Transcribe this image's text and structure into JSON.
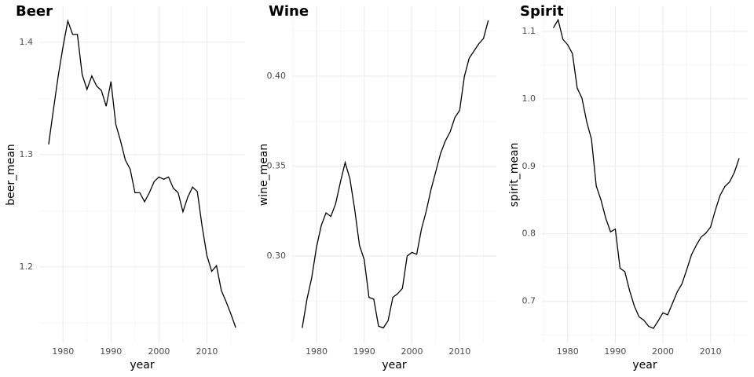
{
  "chart_data": [
    {
      "type": "line",
      "title": "Beer",
      "x_label": "year",
      "y_label": "beer_mean",
      "x": [
        1977,
        1978,
        1979,
        1980,
        1981,
        1982,
        1983,
        1984,
        1985,
        1986,
        1987,
        1988,
        1989,
        1990,
        1991,
        1992,
        1993,
        1994,
        1995,
        1996,
        1997,
        1998,
        1999,
        2000,
        2001,
        2002,
        2003,
        2004,
        2005,
        2006,
        2007,
        2008,
        2009,
        2010,
        2011,
        2012,
        2013,
        2014,
        2015,
        2016
      ],
      "values": [
        1.309,
        1.34,
        1.37,
        1.396,
        1.419,
        1.407,
        1.407,
        1.371,
        1.358,
        1.37,
        1.361,
        1.357,
        1.343,
        1.365,
        1.327,
        1.312,
        1.295,
        1.287,
        1.266,
        1.266,
        1.258,
        1.266,
        1.276,
        1.28,
        1.278,
        1.28,
        1.27,
        1.266,
        1.249,
        1.262,
        1.271,
        1.267,
        1.236,
        1.21,
        1.196,
        1.201,
        1.179,
        1.169,
        1.158,
        1.146
      ],
      "color": "#000000",
      "xlim": [
        1975.05,
        2017.95
      ],
      "xticks": [
        1980,
        1990,
        2000,
        2010
      ],
      "ylim": [
        1.132,
        1.432
      ],
      "yticks": [
        1.2,
        1.3,
        1.4
      ],
      "grid": true
    },
    {
      "type": "line",
      "title": "Wine",
      "x_label": "year",
      "y_label": "wine_mean",
      "x": [
        1977,
        1978,
        1979,
        1980,
        1981,
        1982,
        1983,
        1984,
        1985,
        1986,
        1987,
        1988,
        1989,
        1990,
        1991,
        1992,
        1993,
        1994,
        1995,
        1996,
        1997,
        1998,
        1999,
        2000,
        2001,
        2002,
        2003,
        2004,
        2005,
        2006,
        2007,
        2008,
        2009,
        2010,
        2011,
        2012,
        2013,
        2014,
        2015,
        2016
      ],
      "values": [
        0.26,
        0.276,
        0.288,
        0.305,
        0.317,
        0.324,
        0.322,
        0.329,
        0.341,
        0.352,
        0.343,
        0.326,
        0.306,
        0.298,
        0.277,
        0.276,
        0.261,
        0.26,
        0.264,
        0.277,
        0.279,
        0.282,
        0.3,
        0.302,
        0.301,
        0.315,
        0.325,
        0.337,
        0.347,
        0.357,
        0.364,
        0.369,
        0.377,
        0.381,
        0.4,
        0.41,
        0.414,
        0.418,
        0.421,
        0.431
      ],
      "color": "#000000",
      "xlim": [
        1974.9,
        2017.7
      ],
      "xticks": [
        1980,
        1990,
        2000,
        2010
      ],
      "ylim": [
        0.2515,
        0.4389
      ],
      "yticks": [
        {
          "value": 0.3,
          "label": "0.30"
        },
        {
          "value": 0.35,
          "label": "0.35"
        },
        {
          "value": 0.4,
          "label": "0.40"
        }
      ],
      "grid": true
    },
    {
      "type": "line",
      "title": "Spirit",
      "x_label": "year",
      "y_label": "spirit_mean",
      "x": [
        1977,
        1978,
        1979,
        1980,
        1981,
        1982,
        1983,
        1984,
        1985,
        1986,
        1987,
        1988,
        1989,
        1990,
        1991,
        1992,
        1993,
        1994,
        1995,
        1996,
        1997,
        1998,
        1999,
        2000,
        2001,
        2002,
        2003,
        2004,
        2005,
        2006,
        2007,
        2008,
        2009,
        2010,
        2011,
        2012,
        2013,
        2014,
        2015,
        2016
      ],
      "values": [
        1.105,
        1.117,
        1.088,
        1.08,
        1.067,
        1.016,
        1.001,
        0.966,
        0.94,
        0.871,
        0.85,
        0.823,
        0.803,
        0.807,
        0.749,
        0.744,
        0.716,
        0.693,
        0.677,
        0.672,
        0.663,
        0.66,
        0.671,
        0.683,
        0.68,
        0.697,
        0.714,
        0.726,
        0.747,
        0.769,
        0.783,
        0.795,
        0.801,
        0.81,
        0.835,
        0.857,
        0.87,
        0.877,
        0.891,
        0.912
      ],
      "color": "#000000",
      "xlim": [
        1974.6,
        2017.8
      ],
      "xticks": [
        1980,
        1990,
        2000,
        2010
      ],
      "ylim": [
        0.638,
        1.137
      ],
      "yticks": [
        0.7,
        0.8,
        0.9,
        {
          "value": 1.0,
          "label": "1.0"
        },
        1.1
      ],
      "grid": true
    }
  ]
}
